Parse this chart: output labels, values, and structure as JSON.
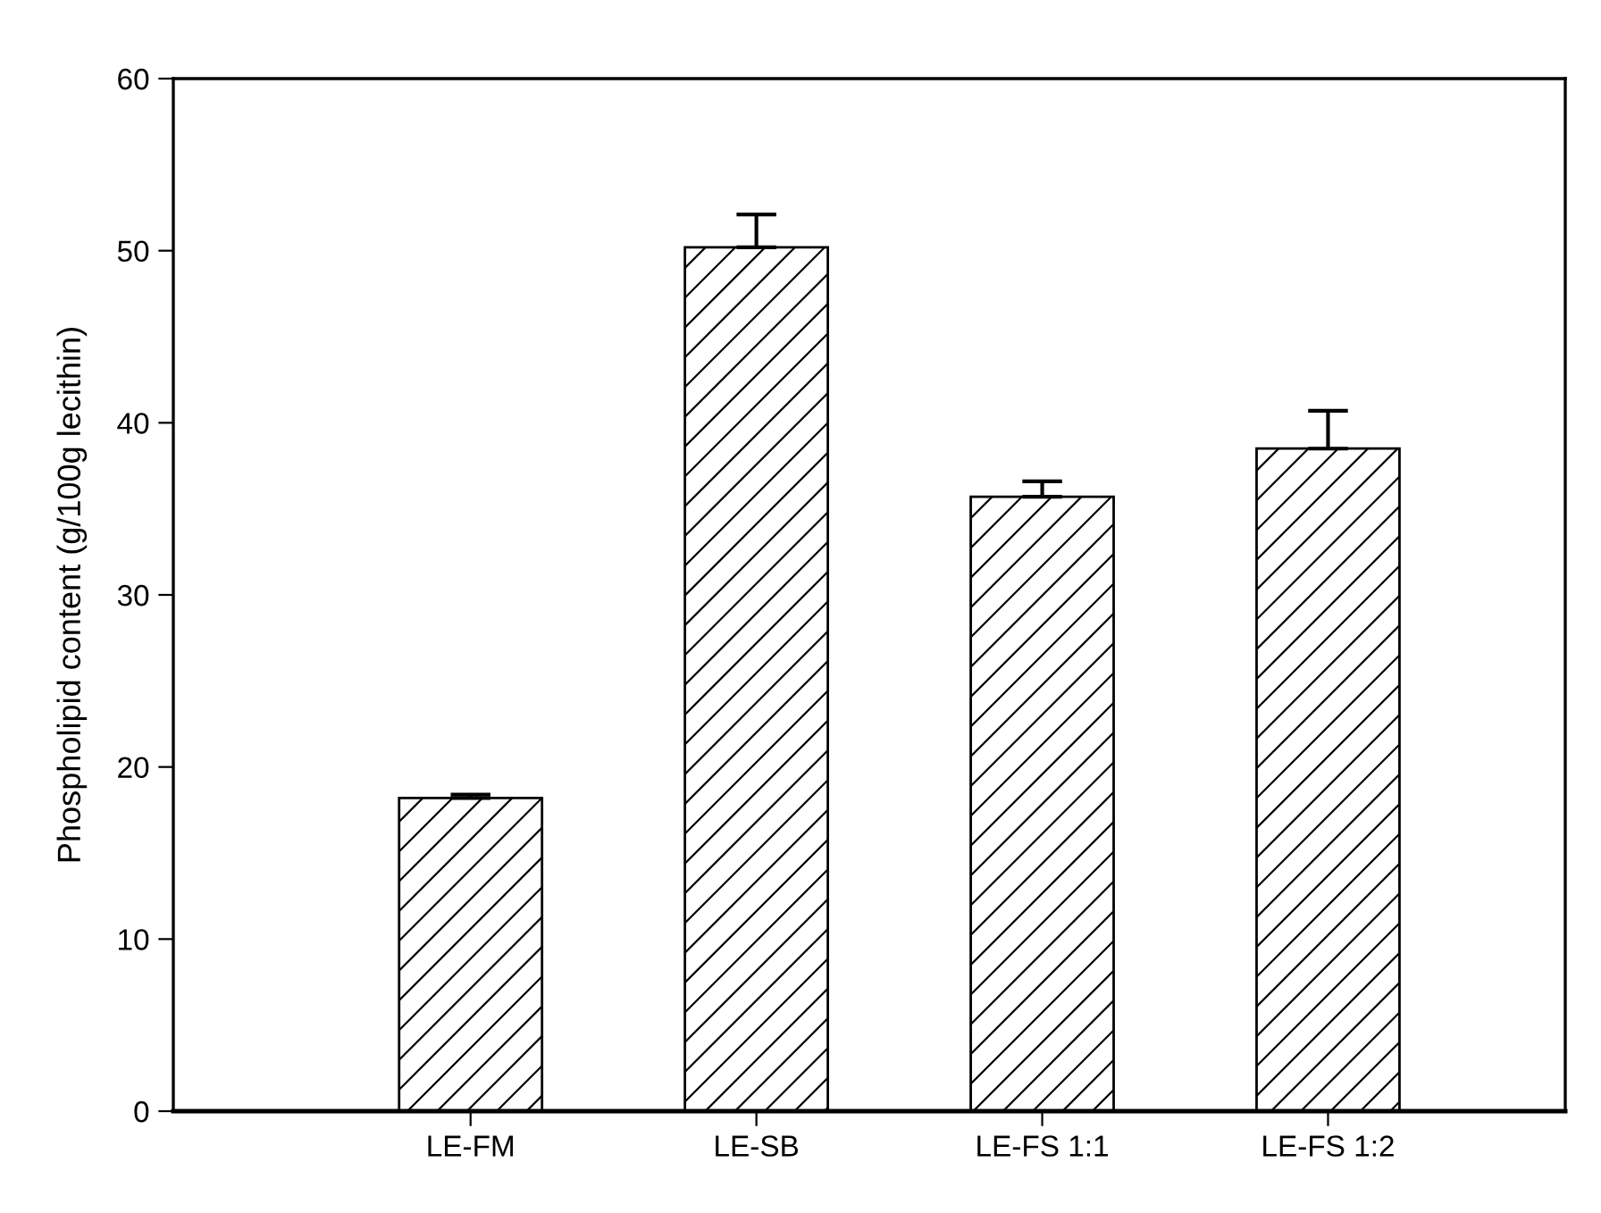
{
  "chart_data": {
    "type": "bar",
    "ylabel": "Phospholipid content (g/100g lecithin)",
    "categories": [
      "LE-FM",
      "LE-SB",
      "LE-FS 1:1",
      "LE-FS 1:2"
    ],
    "values": [
      18.2,
      50.2,
      35.7,
      38.5
    ],
    "errors": [
      [
        18.2,
        18.4
      ],
      [
        50.2,
        52.1
      ],
      [
        35.7,
        36.6
      ],
      [
        38.5,
        40.7
      ]
    ],
    "color": "#000000",
    "ylim": [
      0,
      60
    ],
    "yticks": [
      0,
      10,
      20,
      30,
      40,
      50,
      60
    ],
    "grid": false
  }
}
